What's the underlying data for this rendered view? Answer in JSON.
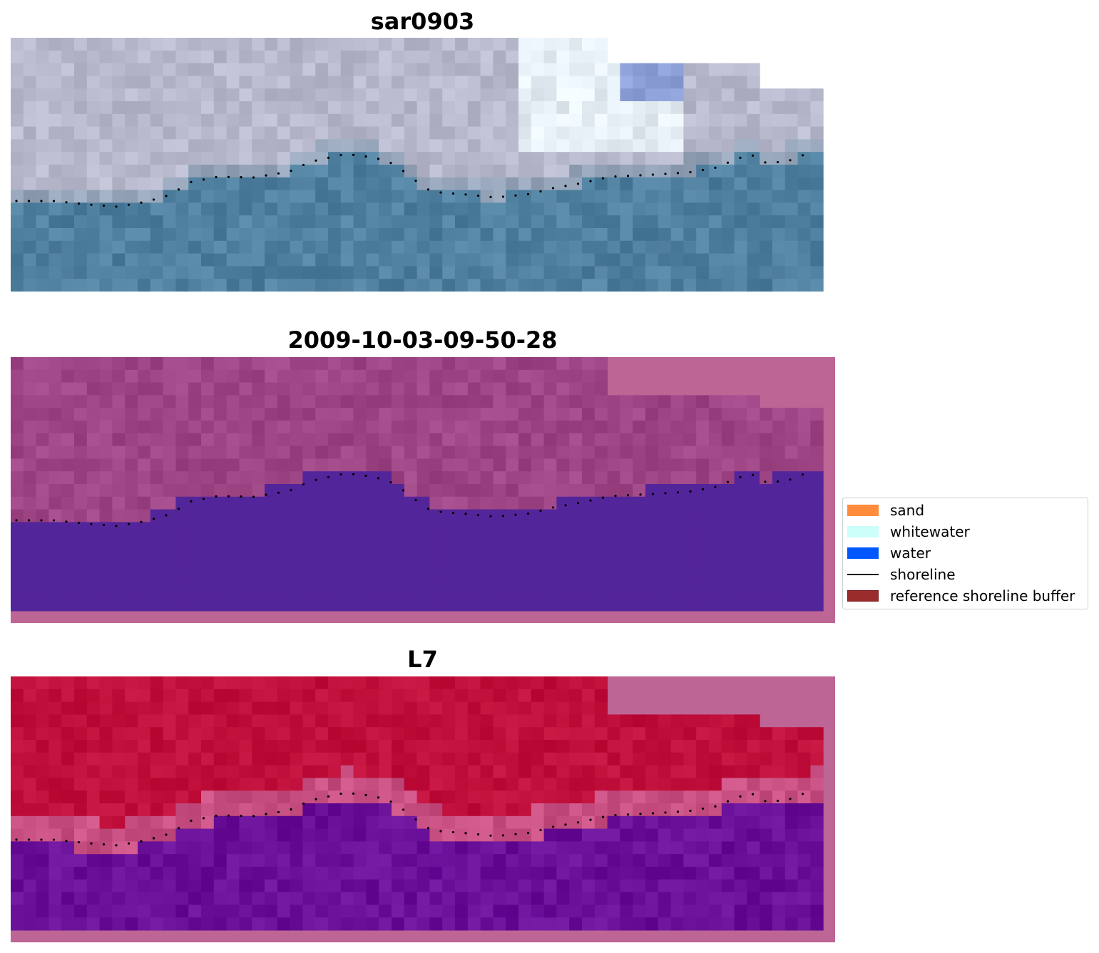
{
  "panels": [
    {
      "title": "sar0903",
      "kind": "rgb"
    },
    {
      "title": "2009-10-03-09-50-28",
      "kind": "classified"
    },
    {
      "title": "L7",
      "kind": "index"
    }
  ],
  "legend": {
    "items": [
      {
        "label": "sand",
        "color": "#ff8c3c",
        "type": "patch"
      },
      {
        "label": "whitewater",
        "color": "#ccfff9",
        "type": "patch"
      },
      {
        "label": "water",
        "color": "#0057ff",
        "type": "patch"
      },
      {
        "label": "shoreline",
        "color": "#000000",
        "type": "line"
      },
      {
        "label": "reference shoreline buffer",
        "color": "#9b2c2c",
        "border": "#7a1f1f",
        "type": "patch"
      }
    ]
  },
  "colors": {
    "nodata_pink": "#bd6595",
    "classified_water": "#53259b",
    "classified_land": "#9e4585",
    "index_land": "#bf0f3a",
    "index_water": "#6a1098",
    "rgb_sky": "#b8b9cc",
    "rgb_water": "#50809f"
  }
}
